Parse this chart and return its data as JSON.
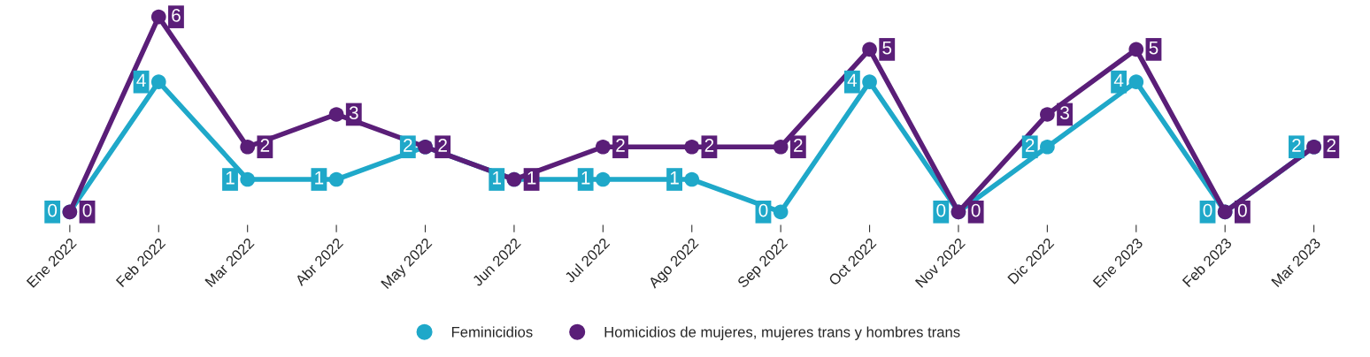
{
  "chart_data": {
    "type": "line",
    "categories": [
      "Ene 2022",
      "Feb 2022",
      "Mar 2022",
      "Abr 2022",
      "May 2022",
      "Jun 2022",
      "Jul 2022",
      "Ago 2022",
      "Sep 2022",
      "Oct 2022",
      "Nov 2022",
      "Dic 2022",
      "Ene 2023",
      "Feb 2023",
      "Mar 2023"
    ],
    "series": [
      {
        "name": "Feminicidios",
        "color": "#1fa8c9",
        "values": [
          0,
          4,
          1,
          1,
          2,
          1,
          1,
          1,
          0,
          4,
          0,
          2,
          4,
          0,
          2
        ]
      },
      {
        "name": "Homicidios de mujeres, mujeres trans y hombres trans",
        "color": "#5a1e78",
        "values": [
          0,
          6,
          2,
          3,
          2,
          1,
          2,
          2,
          2,
          5,
          0,
          3,
          5,
          0,
          2
        ]
      }
    ],
    "data_labels": true,
    "marker": "circle",
    "line_style": "solid",
    "grid": false,
    "legend": "bottom",
    "tick_labels": "x"
  }
}
